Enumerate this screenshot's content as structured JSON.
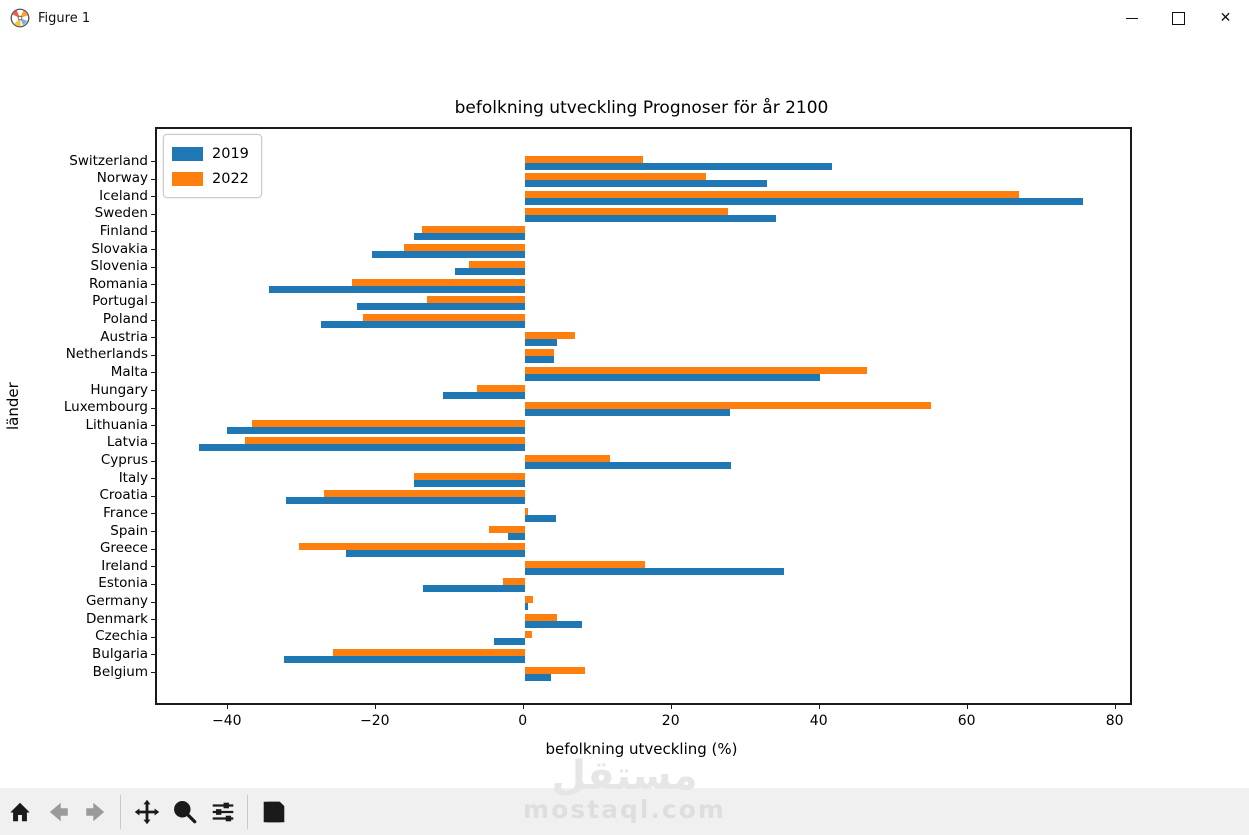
{
  "window": {
    "title": "Figure 1",
    "controls": {
      "minimize": "minimize",
      "maximize": "maximize",
      "close": "close"
    }
  },
  "chart_data": {
    "type": "bar",
    "orientation": "horizontal",
    "title": "befolkning utveckling Prognoser för år 2100",
    "xlabel": "befolkning utveckling (%)",
    "ylabel": "länder",
    "grid": false,
    "legend_position": "upper left",
    "categories": [
      "Switzerland",
      "Norway",
      "Iceland",
      "Sweden",
      "Finland",
      "Slovakia",
      "Slovenia",
      "Romania",
      "Portugal",
      "Poland",
      "Austria",
      "Netherlands",
      "Malta",
      "Hungary",
      "Luxembourg",
      "Lithuania",
      "Latvia",
      "Cyprus",
      "Italy",
      "Croatia",
      "France",
      "Spain",
      "Greece",
      "Ireland",
      "Estonia",
      "Germany",
      "Denmark",
      "Czechia",
      "Bulgaria",
      "Belgium"
    ],
    "series": [
      {
        "name": "2019",
        "color": "#1f77b4",
        "values": [
          41.5,
          32.7,
          75.5,
          34.0,
          -15.0,
          -20.6,
          -9.4,
          -34.5,
          -22.7,
          -27.5,
          4.3,
          4.0,
          39.9,
          -11.0,
          27.8,
          -40.3,
          -44.0,
          27.9,
          -15.0,
          -32.3,
          4.2,
          -2.3,
          -24.1,
          35.0,
          -13.8,
          0.4,
          7.8,
          -4.1,
          -32.6,
          3.5
        ]
      },
      {
        "name": "2022",
        "color": "#ff7f0e",
        "values": [
          16.0,
          24.5,
          66.8,
          27.5,
          -13.9,
          -16.3,
          -7.5,
          -23.3,
          -13.2,
          -21.8,
          6.8,
          3.9,
          46.2,
          -6.5,
          54.9,
          -36.8,
          -37.8,
          11.5,
          -14.9,
          -27.1,
          0.4,
          -4.8,
          -30.5,
          16.2,
          -3.0,
          1.1,
          4.4,
          1.0,
          -25.9,
          8.1
        ]
      }
    ],
    "xlim": [
      -49.7,
      81.8
    ],
    "xticks": [
      -40,
      -20,
      0,
      20,
      40,
      60,
      80
    ],
    "xtick_labels": [
      "−40",
      "−20",
      "0",
      "20",
      "40",
      "60",
      "80"
    ]
  },
  "toolbar": {
    "icons": [
      {
        "name": "home",
        "enabled": true
      },
      {
        "name": "back",
        "enabled": false
      },
      {
        "name": "forward",
        "enabled": false
      },
      {
        "name": "pan",
        "enabled": true
      },
      {
        "name": "zoom",
        "enabled": true
      },
      {
        "name": "subplots",
        "enabled": true
      },
      {
        "name": "save",
        "enabled": true
      }
    ]
  },
  "watermark": {
    "line1": "مستقل",
    "line2": "mostaql.com"
  }
}
